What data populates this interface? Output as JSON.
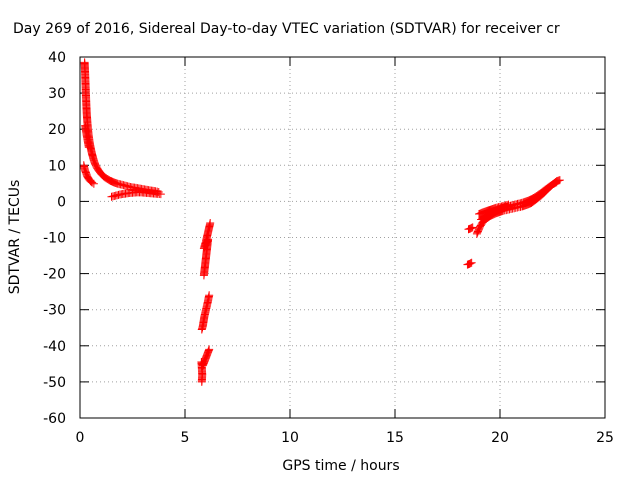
{
  "chart_data": {
    "type": "scatter",
    "title": "Day 269 of 2016, Sidereal Day-to-day VTEC variation (SDTVAR) for receiver cr",
    "xlabel": "GPS time / hours",
    "ylabel": "SDTVAR / TECUs",
    "xlim": [
      0,
      25
    ],
    "ylim": [
      -60,
      40
    ],
    "xticks": [
      0,
      5,
      10,
      15,
      20,
      25
    ],
    "yticks": [
      -60,
      -50,
      -40,
      -30,
      -20,
      -10,
      0,
      10,
      20,
      30,
      40
    ],
    "grid": true,
    "marker": "plus",
    "colors": {
      "series": "#ff0000",
      "grid": "#a0a0a0",
      "axis": "#000000"
    },
    "series": [
      {
        "name": "SDTVAR",
        "segments": [
          {
            "points": [
              [
                0.22,
                38.5
              ],
              [
                0.24,
                36
              ],
              [
                0.26,
                33
              ],
              [
                0.28,
                30
              ],
              [
                0.3,
                27
              ],
              [
                0.32,
                24.5
              ],
              [
                0.35,
                22
              ],
              [
                0.38,
                20
              ],
              [
                0.42,
                18
              ],
              [
                0.47,
                16
              ],
              [
                0.52,
                14.5
              ],
              [
                0.58,
                13
              ],
              [
                0.65,
                11.5
              ],
              [
                0.73,
                10.2
              ],
              [
                0.82,
                9.2
              ],
              [
                0.92,
                8.3
              ],
              [
                1.03,
                7.5
              ],
              [
                1.15,
                6.8
              ],
              [
                1.3,
                6.2
              ],
              [
                1.45,
                5.7
              ],
              [
                1.6,
                5.3
              ],
              [
                1.8,
                4.9
              ],
              [
                2.0,
                4.6
              ],
              [
                2.2,
                4.3
              ],
              [
                2.4,
                4.0
              ],
              [
                2.6,
                3.8
              ],
              [
                2.8,
                3.6
              ],
              [
                3.0,
                3.4
              ],
              [
                3.2,
                3.2
              ],
              [
                3.4,
                3.0
              ],
              [
                3.6,
                2.8
              ],
              [
                3.75,
                2.6
              ]
            ]
          },
          {
            "points": [
              [
                0.18,
                10
              ],
              [
                0.22,
                9
              ],
              [
                0.28,
                8
              ],
              [
                0.34,
                7
              ],
              [
                0.42,
                6.2
              ],
              [
                0.5,
                5.6
              ],
              [
                0.58,
                5.2
              ],
              [
                0.66,
                4.9
              ]
            ]
          },
          {
            "points": [
              [
                0.25,
                21
              ],
              [
                0.3,
                19
              ],
              [
                0.36,
                17
              ],
              [
                0.42,
                15
              ]
            ]
          },
          {
            "points": [
              [
                1.5,
                1.3
              ],
              [
                1.7,
                1.6
              ],
              [
                1.9,
                1.9
              ],
              [
                2.1,
                2.1
              ],
              [
                2.3,
                2.3
              ],
              [
                2.5,
                2.4
              ],
              [
                2.7,
                2.5
              ],
              [
                2.9,
                2.5
              ],
              [
                3.1,
                2.4
              ],
              [
                3.3,
                2.3
              ],
              [
                3.5,
                2.2
              ],
              [
                3.7,
                2.1
              ],
              [
                3.85,
                2.0
              ]
            ]
          },
          {
            "points": [
              [
                6.2,
                -6
              ],
              [
                6.1,
                -8.5
              ],
              [
                6.0,
                -11
              ],
              [
                5.9,
                -13
              ],
              [
                6.0,
                -12
              ],
              [
                6.1,
                -10.5
              ],
              [
                6.05,
                -13
              ],
              [
                6.0,
                -15.5
              ],
              [
                5.95,
                -18
              ],
              [
                5.9,
                -20.5
              ]
            ]
          },
          {
            "points": [
              [
                6.15,
                -26
              ],
              [
                6.08,
                -28
              ],
              [
                6.0,
                -30
              ],
              [
                5.92,
                -32
              ],
              [
                5.85,
                -34.5
              ],
              [
                5.8,
                -35.5
              ]
            ]
          },
          {
            "points": [
              [
                6.15,
                -41
              ],
              [
                6.05,
                -42.5
              ],
              [
                5.95,
                -44
              ],
              [
                5.85,
                -45.5
              ],
              [
                5.78,
                -44.5
              ],
              [
                5.8,
                -46
              ],
              [
                5.82,
                -48
              ],
              [
                5.8,
                -50
              ]
            ]
          },
          {
            "points": [
              [
                18.45,
                -17.5
              ],
              [
                18.55,
                -17.3
              ],
              [
                18.65,
                -17.0
              ]
            ]
          },
          {
            "points": [
              [
                18.5,
                -7.7
              ],
              [
                18.6,
                -7.5
              ],
              [
                18.7,
                -7.2
              ]
            ]
          },
          {
            "points": [
              [
                18.9,
                -9
              ],
              [
                18.97,
                -8
              ],
              [
                19.05,
                -7
              ],
              [
                19.15,
                -6
              ],
              [
                19.25,
                -5.2
              ],
              [
                19.4,
                -4.6
              ],
              [
                19.55,
                -4.0
              ],
              [
                19.7,
                -3.6
              ],
              [
                19.85,
                -3.2
              ],
              [
                20.0,
                -2.9
              ],
              [
                20.15,
                -2.6
              ],
              [
                20.3,
                -2.4
              ],
              [
                20.45,
                -2.2
              ],
              [
                20.6,
                -2.0
              ],
              [
                20.75,
                -1.8
              ],
              [
                20.9,
                -1.6
              ],
              [
                21.05,
                -1.4
              ],
              [
                21.2,
                -1.1
              ],
              [
                21.35,
                -0.8
              ],
              [
                21.5,
                -0.4
              ],
              [
                21.65,
                0.2
              ],
              [
                21.8,
                0.9
              ],
              [
                21.95,
                1.6
              ],
              [
                22.1,
                2.4
              ],
              [
                22.25,
                3.3
              ],
              [
                22.4,
                4.1
              ],
              [
                22.55,
                4.9
              ],
              [
                22.7,
                5.6
              ],
              [
                22.85,
                5.9
              ]
            ]
          },
          {
            "points": [
              [
                19.1,
                -5
              ],
              [
                19.3,
                -4.2
              ],
              [
                19.5,
                -3.4
              ],
              [
                19.7,
                -2.7
              ],
              [
                19.9,
                -2.2
              ],
              [
                20.1,
                -1.8
              ],
              [
                20.3,
                -1.5
              ],
              [
                20.5,
                -1.2
              ],
              [
                20.7,
                -0.9
              ],
              [
                20.9,
                -0.6
              ],
              [
                21.1,
                -0.3
              ],
              [
                21.3,
                0.1
              ],
              [
                21.5,
                0.6
              ],
              [
                21.7,
                1.3
              ],
              [
                21.9,
                2.1
              ],
              [
                22.1,
                3.0
              ],
              [
                22.3,
                3.9
              ],
              [
                22.5,
                4.7
              ],
              [
                22.7,
                5.3
              ]
            ]
          },
          {
            "points": [
              [
                19.0,
                -3.5
              ],
              [
                19.2,
                -3.0
              ],
              [
                19.4,
                -2.6
              ],
              [
                19.6,
                -2.2
              ],
              [
                19.8,
                -1.8
              ],
              [
                20.0,
                -1.5
              ],
              [
                20.2,
                -1.2
              ],
              [
                20.4,
                -0.9
              ]
            ]
          }
        ]
      }
    ]
  }
}
